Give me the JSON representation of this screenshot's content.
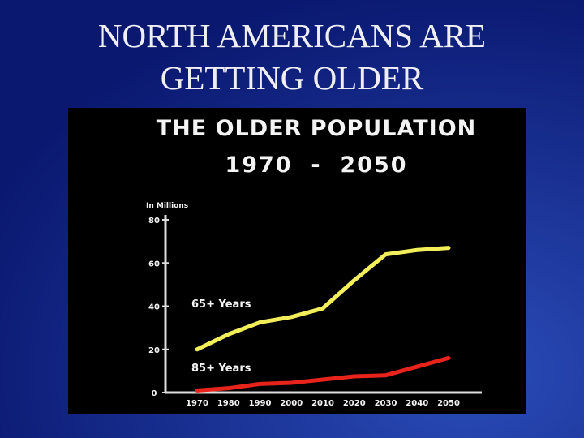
{
  "slide": {
    "title": [
      "NORTH AMERICANS ARE",
      "GETTING OLDER"
    ]
  },
  "chart_data": {
    "type": "line",
    "title": "THE OLDER POPULATION",
    "subtitle": "1970  -  2050",
    "y_label": "In Millions",
    "categories": [
      "1970",
      "1980",
      "1990",
      "2000",
      "2010",
      "2020",
      "2030",
      "2040",
      "2050"
    ],
    "series": [
      {
        "name": "65+ Years",
        "color": "#f2ef5a",
        "values": [
          20,
          27,
          32.5,
          35,
          39,
          52,
          64,
          66,
          67
        ]
      },
      {
        "name": "85+ Years",
        "color": "#e8231c",
        "values": [
          1,
          2,
          4,
          4.5,
          6,
          7.5,
          8,
          12,
          16
        ]
      }
    ],
    "ylim": [
      0,
      80
    ],
    "yticks": [
      0,
      20,
      40,
      60,
      80
    ],
    "grid": false
  }
}
